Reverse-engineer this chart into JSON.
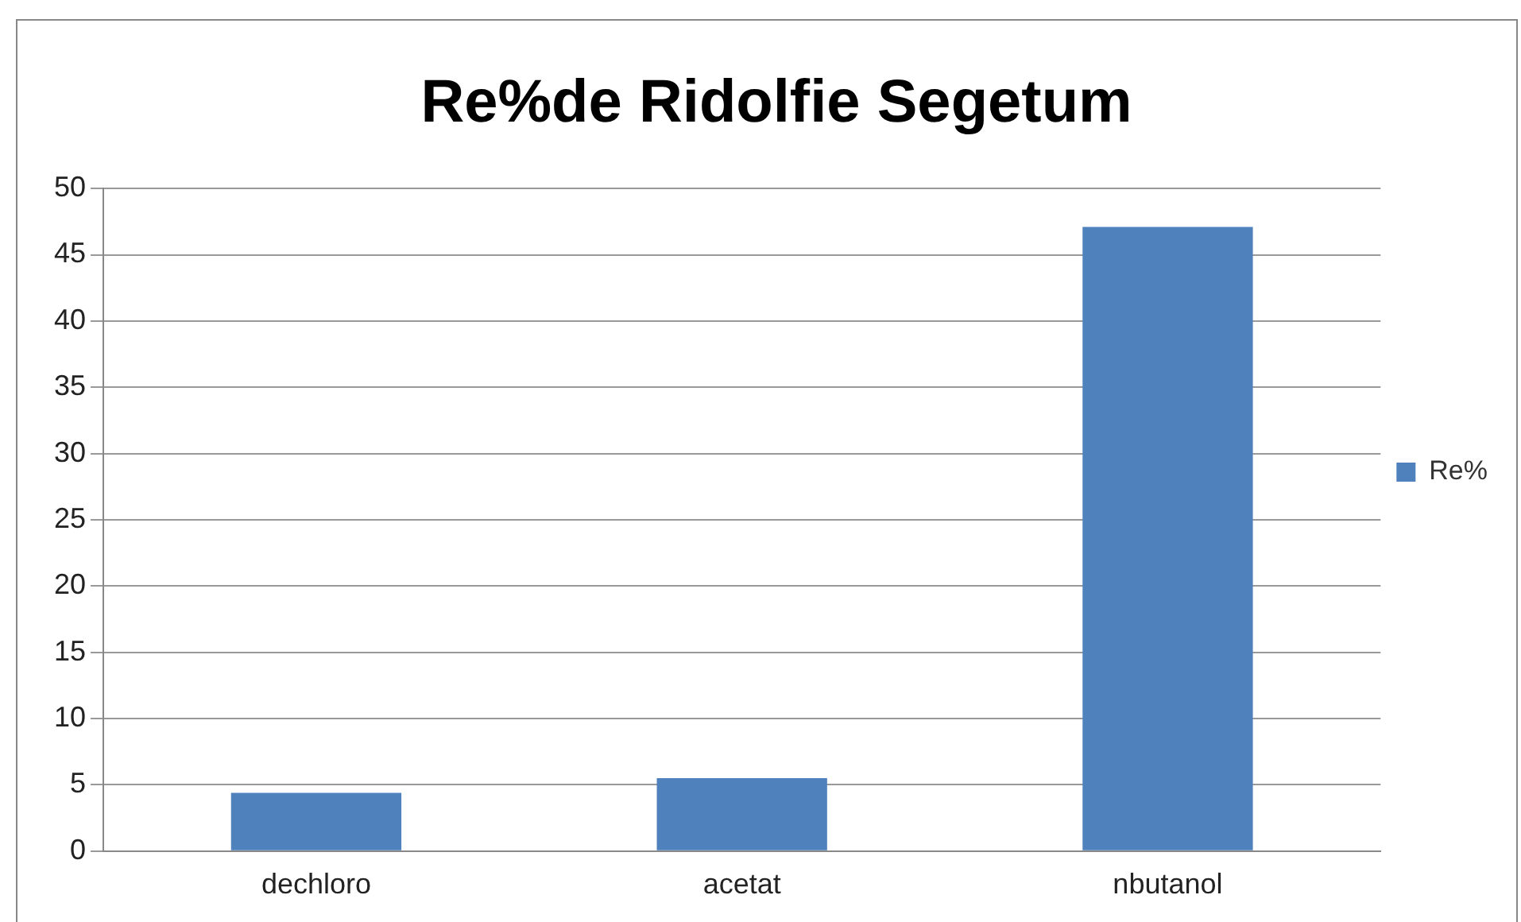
{
  "chart_data": {
    "type": "bar",
    "title": "Re%de Ridolfie Segetum",
    "categories": [
      "dechloro",
      "acetat",
      "nbutanol"
    ],
    "series": [
      {
        "name": "Re%",
        "color": "#4f81bd",
        "values": [
          4.4,
          5.5,
          47.1
        ]
      }
    ],
    "ylim": [
      0,
      50
    ],
    "yticks": [
      0,
      5,
      10,
      15,
      20,
      25,
      30,
      35,
      40,
      45,
      50
    ],
    "grid": "y",
    "legend": "right"
  }
}
